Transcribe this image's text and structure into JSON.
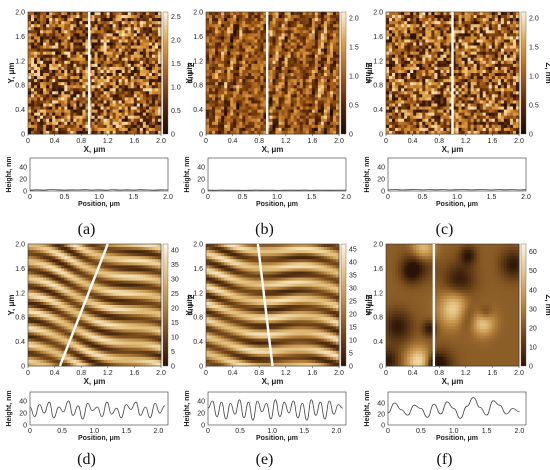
{
  "chart_data": [
    {
      "type": "heatmap",
      "panel_label": "(a)",
      "map": {
        "xlabel": "X, μm",
        "ylabel": "Y, μm",
        "zlabel": "Z, nm",
        "x_ticks": [
          "0",
          "0.4",
          "0.8",
          "1.2",
          "1.6",
          "2.0"
        ],
        "y_ticks": [
          "0",
          "0.4",
          "0.8",
          "1.2",
          "1.6",
          "2.0"
        ],
        "z_ticks": [
          "0",
          "0.5",
          "1.0",
          "1.5",
          "2.0",
          "2.5"
        ],
        "z_range": [
          0,
          2.6
        ],
        "xlim": [
          0,
          2.0
        ],
        "ylim": [
          0,
          2.0
        ],
        "colormap": [
          "#1a0a02",
          "#5a2a08",
          "#a8601a",
          "#e0a040",
          "#fff4d8"
        ],
        "texture": "granular",
        "profile_line": {
          "orientation": "vertical",
          "x": 0.92
        }
      },
      "profile": {
        "ylabel": "Height, nm",
        "xlabel": "Position, μm",
        "x_ticks": [
          "0",
          "0.5",
          "1.0",
          "1.5",
          "2.0"
        ],
        "y_ticks": [
          "0",
          "20",
          "40"
        ],
        "xlim": [
          0,
          2.0
        ],
        "ylim": [
          0,
          55
        ],
        "x": [
          0,
          0.1,
          0.2,
          0.3,
          0.4,
          0.5,
          0.6,
          0.7,
          0.8,
          0.9,
          1.0,
          1.1,
          1.2,
          1.3,
          1.4,
          1.5,
          1.6,
          1.7,
          1.8,
          1.9,
          2.0
        ],
        "y": [
          1.5,
          2,
          1.5,
          2.5,
          2,
          1.5,
          2,
          1.8,
          2.2,
          1.6,
          2,
          1.5,
          2.3,
          1.7,
          2,
          1.6,
          2.2,
          1.8,
          1.5,
          2,
          1.8
        ]
      }
    },
    {
      "type": "heatmap",
      "panel_label": "(b)",
      "map": {
        "xlabel": "X, μm",
        "ylabel": "Y, μm",
        "zlabel": "Z, nm",
        "x_ticks": [
          "0",
          "0.4",
          "0.8",
          "1.2",
          "1.6",
          "2.0"
        ],
        "y_ticks": [
          "0",
          "0.4",
          "0.8",
          "1.2",
          "1.6",
          "2.0"
        ],
        "z_ticks": [
          "0",
          "0.5",
          "1.0",
          "1.5",
          "2.0"
        ],
        "z_range": [
          0,
          2.1
        ],
        "xlim": [
          0,
          2.0
        ],
        "ylim": [
          0,
          2.0
        ],
        "colormap": [
          "#1a0a02",
          "#5a2a08",
          "#a8601a",
          "#e0a040",
          "#fff4d8"
        ],
        "texture": "scratched",
        "profile_line": {
          "orientation": "vertical",
          "x": 0.92
        }
      },
      "profile": {
        "ylabel": "Height, nm",
        "xlabel": "Position, μm",
        "x_ticks": [
          "0",
          "0.5",
          "1.0",
          "1.5",
          "2.0"
        ],
        "y_ticks": [
          "0",
          "20",
          "40"
        ],
        "xlim": [
          0,
          2.0
        ],
        "ylim": [
          0,
          55
        ],
        "x": [
          0,
          0.1,
          0.2,
          0.3,
          0.4,
          0.5,
          0.6,
          0.7,
          0.8,
          0.9,
          1.0,
          1.1,
          1.2,
          1.3,
          1.4,
          1.5,
          1.6,
          1.7,
          1.8,
          1.9,
          2.0
        ],
        "y": [
          1.5,
          1.2,
          1.6,
          1.3,
          1.5,
          1.2,
          1.4,
          1.6,
          1.3,
          1.5,
          1.2,
          1.4,
          1.5,
          1.3,
          1.6,
          1.2,
          1.5,
          1.3,
          1.4,
          1.5,
          1.3
        ]
      }
    },
    {
      "type": "heatmap",
      "panel_label": "(c)",
      "map": {
        "xlabel": "X, μm",
        "ylabel": "Y, μm",
        "zlabel": "Z, nm",
        "x_ticks": [
          "0",
          "0.4",
          "0.8",
          "1.2",
          "1.6",
          "2.0"
        ],
        "y_ticks": [
          "0",
          "0.4",
          "0.8",
          "1.2",
          "1.6",
          "2.0"
        ],
        "z_ticks": [
          "0",
          "0.5",
          "1.0",
          "1.5",
          "2.0"
        ],
        "z_range": [
          0,
          2.1
        ],
        "xlim": [
          0,
          2.0
        ],
        "ylim": [
          0,
          2.0
        ],
        "colormap": [
          "#1a0a02",
          "#5a2a08",
          "#a8601a",
          "#e0a040",
          "#fff4d8"
        ],
        "texture": "grainy",
        "profile_line": {
          "orientation": "vertical",
          "x": 1.0
        }
      },
      "profile": {
        "ylabel": "Height, nm",
        "xlabel": "Position, μm",
        "x_ticks": [
          "0",
          "0.5",
          "1.0",
          "1.5",
          "2.0"
        ],
        "y_ticks": [
          "0",
          "20",
          "40"
        ],
        "xlim": [
          0,
          2.0
        ],
        "ylim": [
          0,
          55
        ],
        "x": [
          0,
          0.1,
          0.2,
          0.3,
          0.4,
          0.5,
          0.6,
          0.7,
          0.8,
          0.9,
          1.0,
          1.1,
          1.2,
          1.3,
          1.4,
          1.5,
          1.6,
          1.7,
          1.8,
          1.9,
          2.0
        ],
        "y": [
          2,
          2.5,
          1.8,
          2.2,
          2.6,
          1.9,
          2.3,
          2.0,
          2.4,
          1.8,
          2.2,
          2.5,
          1.9,
          2.1,
          2.4,
          1.8,
          2.3,
          2.0,
          2.4,
          1.9,
          2.2
        ]
      }
    },
    {
      "type": "heatmap",
      "panel_label": "(d)",
      "map": {
        "xlabel": "X, μm",
        "ylabel": "Y, μm",
        "zlabel": "Z, nm",
        "x_ticks": [
          "0",
          "0.4",
          "0.8",
          "1.2",
          "1.6",
          "2.0"
        ],
        "y_ticks": [
          "0",
          "0.4",
          "0.8",
          "1.2",
          "1.6",
          "2.0"
        ],
        "z_ticks": [
          "0",
          "5",
          "10",
          "15",
          "20",
          "25",
          "30",
          "35",
          "40"
        ],
        "z_range": [
          0,
          42
        ],
        "xlim": [
          0,
          2.0
        ],
        "ylim": [
          0,
          2.0
        ],
        "colormap": [
          "#2a1406",
          "#6e4418",
          "#b8843e",
          "#e2c07e",
          "#fff6de"
        ],
        "texture": "ripples",
        "ripple_angle_deg": -17,
        "profile_line": {
          "orientation": "slanted",
          "x_start": 0.48,
          "x_end": 1.2
        }
      },
      "profile": {
        "ylabel": "Height, nm",
        "xlabel": "Position, μm",
        "x_ticks": [
          "0",
          "0.5",
          "1.0",
          "1.5",
          "2.0"
        ],
        "y_ticks": [
          "0",
          "20",
          "40"
        ],
        "xlim": [
          0,
          2.15
        ],
        "ylim": [
          0,
          55
        ],
        "x": [
          0,
          0.07,
          0.15,
          0.22,
          0.3,
          0.37,
          0.45,
          0.52,
          0.6,
          0.67,
          0.75,
          0.82,
          0.9,
          0.97,
          1.05,
          1.12,
          1.2,
          1.27,
          1.35,
          1.42,
          1.5,
          1.57,
          1.65,
          1.72,
          1.8,
          1.87,
          1.95,
          2.02,
          2.1
        ],
        "y": [
          30,
          14,
          34,
          20,
          38,
          12,
          30,
          22,
          40,
          16,
          32,
          10,
          36,
          24,
          30,
          14,
          38,
          18,
          28,
          12,
          34,
          26,
          38,
          16,
          30,
          12,
          36,
          20,
          32
        ]
      }
    },
    {
      "type": "heatmap",
      "panel_label": "(e)",
      "map": {
        "xlabel": "X, μm",
        "ylabel": "Y, μm",
        "zlabel": "Z, nm",
        "x_ticks": [
          "0",
          "0.4",
          "0.8",
          "1.2",
          "1.6",
          "2.0"
        ],
        "y_ticks": [
          "0",
          "0.4",
          "0.8",
          "1.2",
          "1.6",
          "2.0"
        ],
        "z_ticks": [
          "0",
          "5",
          "10",
          "15",
          "20",
          "25",
          "30",
          "35",
          "40",
          "45"
        ],
        "z_range": [
          0,
          47
        ],
        "xlim": [
          0,
          2.0
        ],
        "ylim": [
          0,
          2.0
        ],
        "colormap": [
          "#2a1406",
          "#6e4418",
          "#b8843e",
          "#e2c07e",
          "#fff6de"
        ],
        "texture": "ripples",
        "ripple_angle_deg": -8,
        "profile_line": {
          "orientation": "slanted",
          "x_start": 1.0,
          "x_end": 0.78
        }
      },
      "profile": {
        "ylabel": "Height, nm",
        "xlabel": "Position, μm",
        "x_ticks": [
          "0",
          "0.5",
          "1.0",
          "1.5",
          "2.0"
        ],
        "y_ticks": [
          "0",
          "20",
          "40"
        ],
        "xlim": [
          0,
          2.15
        ],
        "ylim": [
          0,
          55
        ],
        "x": [
          0,
          0.07,
          0.14,
          0.21,
          0.28,
          0.35,
          0.42,
          0.49,
          0.56,
          0.63,
          0.7,
          0.77,
          0.84,
          0.91,
          0.98,
          1.05,
          1.12,
          1.19,
          1.26,
          1.33,
          1.4,
          1.47,
          1.54,
          1.61,
          1.68,
          1.75,
          1.82,
          1.89,
          1.96,
          2.03,
          2.1
        ],
        "y": [
          28,
          40,
          14,
          38,
          10,
          36,
          18,
          42,
          12,
          38,
          8,
          40,
          22,
          36,
          10,
          42,
          14,
          38,
          20,
          40,
          12,
          36,
          8,
          42,
          16,
          38,
          10,
          40,
          18,
          34,
          28
        ]
      }
    },
    {
      "type": "heatmap",
      "panel_label": "(f)",
      "map": {
        "xlabel": "X, μm",
        "ylabel": "Y, μm",
        "zlabel": "Z, nm",
        "x_ticks": [
          "0",
          "0.4",
          "0.8",
          "1.2",
          "1.6",
          "2.0"
        ],
        "y_ticks": [
          "0",
          "0.4",
          "0.8",
          "1.2",
          "1.6",
          "2.0"
        ],
        "z_ticks": [
          "0",
          "10",
          "20",
          "30",
          "40",
          "50",
          "60"
        ],
        "z_range": [
          0,
          64
        ],
        "xlim": [
          0,
          2.0
        ],
        "ylim": [
          0,
          2.0
        ],
        "colormap": [
          "#2a1406",
          "#6e4418",
          "#b8843e",
          "#e2c07e",
          "#fff6de"
        ],
        "texture": "blobs",
        "profile_line": {
          "orientation": "vertical",
          "x": 0.72
        }
      },
      "profile": {
        "ylabel": "Height, nm",
        "xlabel": "Position, μm",
        "x_ticks": [
          "0",
          "0.5",
          "1.0",
          "1.5",
          "2.0"
        ],
        "y_ticks": [
          "0",
          "20",
          "40"
        ],
        "xlim": [
          0,
          2.1
        ],
        "ylim": [
          0,
          60
        ],
        "x": [
          0,
          0.1,
          0.2,
          0.3,
          0.4,
          0.5,
          0.6,
          0.7,
          0.8,
          0.9,
          1.0,
          1.1,
          1.2,
          1.3,
          1.4,
          1.5,
          1.6,
          1.7,
          1.8,
          1.9,
          2.0
        ],
        "y": [
          22,
          40,
          28,
          18,
          36,
          30,
          14,
          38,
          20,
          42,
          30,
          12,
          34,
          50,
          32,
          18,
          44,
          36,
          20,
          30,
          24
        ]
      }
    }
  ]
}
